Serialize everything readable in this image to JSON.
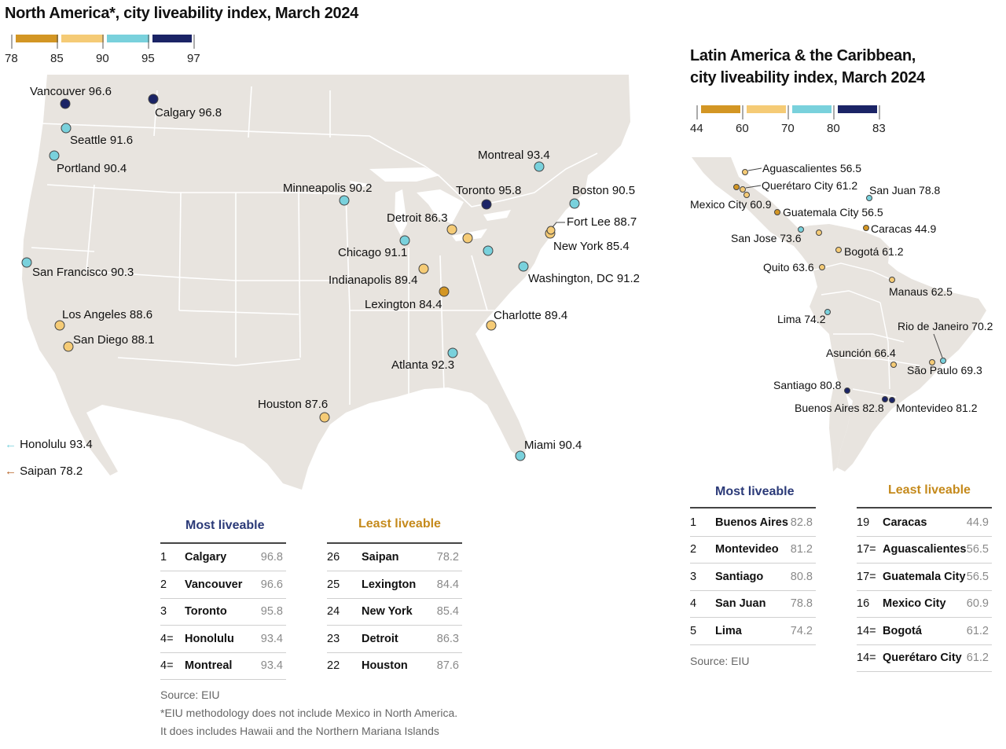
{
  "north_america": {
    "title": "North America*, city liveability index, March 2024",
    "scale_ticks": [
      "78",
      "85",
      "90",
      "95",
      "97"
    ],
    "scale_colors": [
      "#d39624",
      "#f5cb76",
      "#79d1dc",
      "#1b2466"
    ],
    "cities": [
      {
        "label": "Vancouver 96.6"
      },
      {
        "label": "Calgary 96.8"
      },
      {
        "label": "Seattle 91.6"
      },
      {
        "label": "Portland 90.4"
      },
      {
        "label": "San Francisco 90.3"
      },
      {
        "label": "Los Angeles 88.6"
      },
      {
        "label": "San Diego 88.1"
      },
      {
        "label": "Minneapolis 90.2"
      },
      {
        "label": "Detroit 86.3"
      },
      {
        "label": "Chicago 91.1"
      },
      {
        "label": "Indianapolis 89.4"
      },
      {
        "label": "Lexington 84.4"
      },
      {
        "label": "Atlanta 92.3"
      },
      {
        "label": "Houston 87.6"
      },
      {
        "label": "Miami 90.4"
      },
      {
        "label": "Charlotte 89.4"
      },
      {
        "label": "Washington, DC 91.2"
      },
      {
        "label": "New York 85.4"
      },
      {
        "label": "Fort Lee 88.7"
      },
      {
        "label": "Boston 90.5"
      },
      {
        "label": "Montreal 93.4"
      },
      {
        "label": "Toronto 95.8"
      }
    ],
    "offmap": [
      {
        "label": "Honolulu 93.4",
        "arrow": "←",
        "color": "#79d1dc"
      },
      {
        "label": "Saipan 78.2",
        "arrow": "←",
        "color": "#b8652a"
      }
    ],
    "most_title": "Most liveable",
    "least_title": "Least liveable",
    "most": [
      {
        "rank": "1",
        "city": "Calgary",
        "value": "96.8"
      },
      {
        "rank": "2",
        "city": "Vancouver",
        "value": "96.6"
      },
      {
        "rank": "3",
        "city": "Toronto",
        "value": "95.8"
      },
      {
        "rank": "4=",
        "city": "Honolulu",
        "value": "93.4"
      },
      {
        "rank": "4=",
        "city": "Montreal",
        "value": "93.4"
      }
    ],
    "least": [
      {
        "rank": "26",
        "city": "Saipan",
        "value": "78.2"
      },
      {
        "rank": "25",
        "city": "Lexington",
        "value": "84.4"
      },
      {
        "rank": "24",
        "city": "New York",
        "value": "85.4"
      },
      {
        "rank": "23",
        "city": "Detroit",
        "value": "86.3"
      },
      {
        "rank": "22",
        "city": "Houston",
        "value": "87.6"
      }
    ],
    "source": "Source: EIU",
    "footnote1": "*EIU methodology does not include Mexico in North America.",
    "footnote2": "It does includes Hawaii and the Northern Mariana Islands"
  },
  "latin_america": {
    "title_line1": "Latin America & the Caribbean,",
    "title_line2": "city liveability index, March 2024",
    "scale_ticks": [
      "44",
      "60",
      "70",
      "80",
      "83"
    ],
    "scale_colors": [
      "#d39624",
      "#f5cb76",
      "#79d1dc",
      "#1b2466"
    ],
    "cities": [
      {
        "label": "Aguascalientes 56.5"
      },
      {
        "label": "Querétaro City 61.2"
      },
      {
        "label": "Mexico City 60.9"
      },
      {
        "label": "Guatemala City 56.5"
      },
      {
        "label": "San Jose 73.6"
      },
      {
        "label": "San Juan 78.8"
      },
      {
        "label": "Caracas 44.9"
      },
      {
        "label": "Bogotá 61.2"
      },
      {
        "label": "Quito 63.6"
      },
      {
        "label": "Manaus 62.5"
      },
      {
        "label": "Lima 74.2"
      },
      {
        "label": "Rio de Janeiro 70.2"
      },
      {
        "label": "Asunción 66.4"
      },
      {
        "label": "São Paulo 69.3"
      },
      {
        "label": "Santiago 80.8"
      },
      {
        "label": "Buenos Aires 82.8"
      },
      {
        "label": "Montevideo 81.2"
      }
    ],
    "most_title": "Most liveable",
    "least_title": "Least liveable",
    "most": [
      {
        "rank": "1",
        "city": "Buenos Aires",
        "value": "82.8"
      },
      {
        "rank": "2",
        "city": "Montevideo",
        "value": "81.2"
      },
      {
        "rank": "3",
        "city": "Santiago",
        "value": "80.8"
      },
      {
        "rank": "4",
        "city": "San Juan",
        "value": "78.8"
      },
      {
        "rank": "5",
        "city": "Lima",
        "value": "74.2"
      }
    ],
    "least": [
      {
        "rank": "19",
        "city": "Caracas",
        "value": "44.9"
      },
      {
        "rank": "17=",
        "city": "Aguascalientes",
        "value": "56.5"
      },
      {
        "rank": "17=",
        "city": "Guatemala City",
        "value": "56.5"
      },
      {
        "rank": "16",
        "city": "Mexico City",
        "value": "60.9"
      },
      {
        "rank": "14=",
        "city": "Bogotá",
        "value": "61.2"
      },
      {
        "rank": "14=",
        "city": "Querétaro City",
        "value": "61.2"
      }
    ],
    "source": "Source: EIU"
  }
}
